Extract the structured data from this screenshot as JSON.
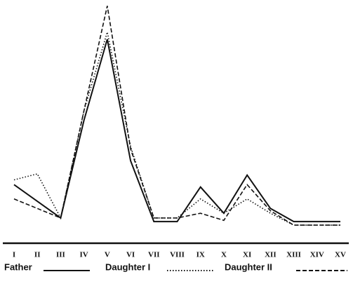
{
  "chart_data": {
    "type": "line",
    "categories": [
      "I",
      "II",
      "III",
      "IV",
      "V",
      "VI",
      "VII",
      "VIII",
      "IX",
      "X",
      "XI",
      "XII",
      "XIII",
      "XIV",
      "XV"
    ],
    "series": [
      {
        "name": "Father",
        "color": "#111111",
        "dash": "solid",
        "values": [
          24,
          17,
          10,
          51,
          85,
          34,
          8.5,
          8.5,
          23,
          12,
          28,
          14,
          8.5,
          8.5,
          8.5
        ]
      },
      {
        "name": "Daughter I",
        "color": "#111111",
        "dash": "dotted",
        "values": [
          26,
          28.5,
          10,
          55,
          88,
          40,
          10,
          10,
          18,
          12,
          18,
          12,
          7,
          7,
          7
        ]
      },
      {
        "name": "Daughter II",
        "color": "#111111",
        "dash": "dashed",
        "values": [
          18,
          14,
          10,
          55,
          99,
          39,
          10,
          10,
          12,
          9,
          24,
          13,
          7,
          7,
          7
        ]
      }
    ],
    "ylim": [
      0,
      100
    ]
  }
}
